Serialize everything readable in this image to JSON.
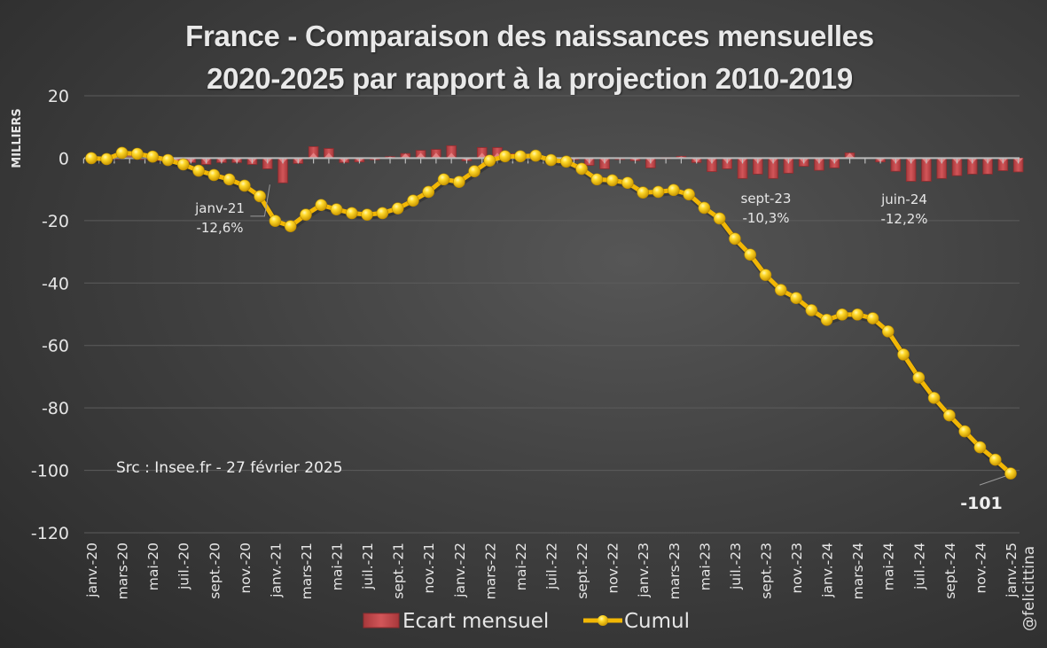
{
  "chart_data": {
    "type": "bar+line",
    "title": "France - Comparaison des naissances mensuelles",
    "subtitle": "2020-2025 par rapport à la projection 2010-2019",
    "ylabel": "MILLIERS",
    "xlabel": "",
    "ylim": [
      -120,
      20
    ],
    "yticks": [
      20,
      0,
      -20,
      -40,
      -60,
      -80,
      -100,
      -120
    ],
    "grid": true,
    "legend_position": "bottom",
    "x": [
      "janv.-20",
      "févr.-20",
      "mars-20",
      "avr.-20",
      "mai-20",
      "juin-20",
      "juil.-20",
      "août-20",
      "sept.-20",
      "oct.-20",
      "nov.-20",
      "déc.-20",
      "janv.-21",
      "févr.-21",
      "mars-21",
      "avr.-21",
      "mai-21",
      "juin-21",
      "juil.-21",
      "août-21",
      "sept.-21",
      "oct.-21",
      "nov.-21",
      "déc.-21",
      "janv.-22",
      "févr.-22",
      "mars-22",
      "avr.-22",
      "mai-22",
      "juin-22",
      "juil.-22",
      "août-22",
      "sept.-22",
      "oct.-22",
      "nov.-22",
      "déc.-22",
      "janv.-23",
      "févr.-23",
      "mars-23",
      "avr.-23",
      "mai-23",
      "juin-23",
      "juil.-23",
      "août-23",
      "sept.-23",
      "oct.-23",
      "nov.-23",
      "déc.-23",
      "janv.-24",
      "févr.-24",
      "mars-24",
      "avr.-24",
      "mai-24",
      "juin-24",
      "juil.-24",
      "août-24",
      "sept.-24",
      "oct.-24",
      "nov.-24",
      "déc.-24",
      "janv.-25"
    ],
    "tick_labels": [
      "janv.-20",
      "mars-20",
      "mai-20",
      "juil.-20",
      "sept.-20",
      "nov.-20",
      "janv.-21",
      "mars-21",
      "mai-21",
      "juil.-21",
      "sept.-21",
      "nov.-21",
      "janv.-22",
      "mars-22",
      "mai-22",
      "juil.-22",
      "sept.-22",
      "nov.-22",
      "janv.-23",
      "mars-23",
      "mai-23",
      "juil.-23",
      "sept.-23",
      "nov.-23",
      "janv.-24",
      "mars-24",
      "mai-24",
      "juil.-24",
      "sept.-24",
      "nov.-24",
      "janv.-25"
    ],
    "series": [
      {
        "name": "Ecart mensuel",
        "type": "bar",
        "color": "#c0474a",
        "values": [
          0.0,
          -0.3,
          2.0,
          -0.3,
          -0.9,
          -1.1,
          -1.4,
          -2.0,
          -1.4,
          -1.4,
          -2.0,
          -3.4,
          -7.9,
          -1.7,
          3.7,
          3.1,
          -1.4,
          -1.2,
          -0.5,
          0.5,
          1.5,
          2.5,
          2.8,
          4.0,
          -0.8,
          3.4,
          3.4,
          1.4,
          0.0,
          0.2,
          -1.4,
          -0.5,
          -2.3,
          -3.4,
          -0.3,
          -0.8,
          -3.1,
          0.2,
          0.6,
          -1.4,
          -4.3,
          -3.4,
          -6.5,
          -5.1,
          -6.5,
          -4.8,
          -2.6,
          -3.9,
          -3.1,
          1.7,
          0.0,
          -1.2,
          -4.2,
          -7.4,
          -7.4,
          -6.5,
          -5.6,
          -5.1,
          -5.1,
          -4.0,
          -4.4
        ]
      },
      {
        "name": "Cumul",
        "type": "line",
        "color": "#f2b705",
        "values": [
          0.0,
          -0.3,
          1.7,
          1.4,
          0.5,
          -0.6,
          -2.0,
          -4.0,
          -5.4,
          -6.8,
          -8.8,
          -12.2,
          -20.1,
          -21.8,
          -18.1,
          -15.0,
          -16.4,
          -17.6,
          -18.1,
          -17.6,
          -16.1,
          -13.6,
          -10.8,
          -6.8,
          -7.6,
          -4.2,
          -0.8,
          0.6,
          0.6,
          0.8,
          -0.6,
          -1.1,
          -3.4,
          -6.8,
          -7.1,
          -7.9,
          -11.0,
          -10.8,
          -10.2,
          -11.6,
          -15.9,
          -19.3,
          -25.8,
          -30.9,
          -37.4,
          -42.2,
          -44.8,
          -48.7,
          -51.8,
          -50.1,
          -50.1,
          -51.3,
          -55.5,
          -62.9,
          -70.3,
          -76.8,
          -82.4,
          -87.5,
          -92.6,
          -96.6,
          -101
        ]
      }
    ],
    "annotations": [
      {
        "month": "janv.-21",
        "label": "janv-21",
        "value": "-12,6%"
      },
      {
        "month": "sept.-23",
        "label": "sept-23",
        "value": "-10,3%"
      },
      {
        "month": "juin-24",
        "label": "juin-24",
        "value": "-12,2%"
      },
      {
        "month": "janv.-25",
        "label": "-101",
        "value": ""
      }
    ],
    "source": "Src : Insee.fr - 27 février 2025",
    "credit": "@felicittina"
  }
}
